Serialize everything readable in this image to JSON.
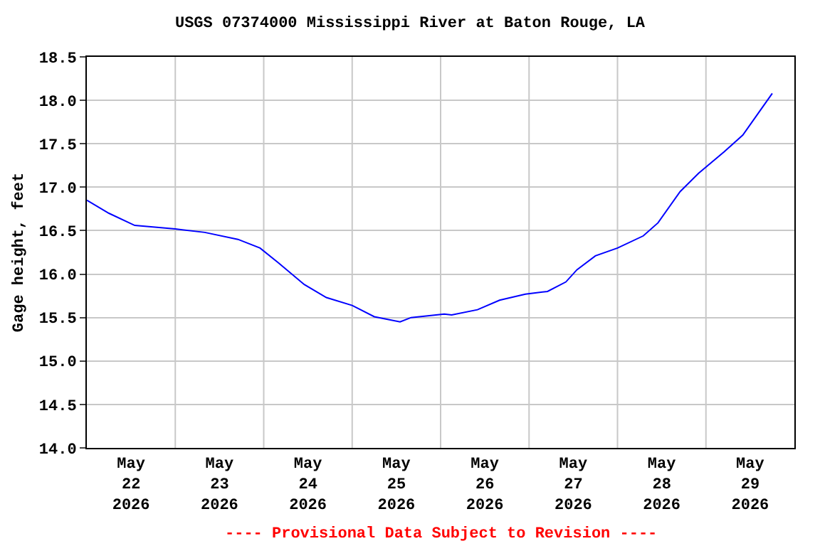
{
  "chart_data": {
    "type": "line",
    "title": "USGS 07374000 Mississippi River at Baton Rouge, LA",
    "ylabel": "Gage height, feet",
    "x": [
      "2026-05-22T00:00",
      "2026-05-22T06:00",
      "2026-05-22T13:00",
      "2026-05-23T00:00",
      "2026-05-23T08:00",
      "2026-05-23T17:00",
      "2026-05-23T23:00",
      "2026-05-24T04:00",
      "2026-05-24T11:00",
      "2026-05-24T17:00",
      "2026-05-25T00:00",
      "2026-05-25T06:00",
      "2026-05-25T13:00",
      "2026-05-25T16:00",
      "2026-05-26T01:00",
      "2026-05-26T03:00",
      "2026-05-26T10:00",
      "2026-05-26T16:00",
      "2026-05-26T23:00",
      "2026-05-27T05:00",
      "2026-05-27T10:00",
      "2026-05-27T13:00",
      "2026-05-27T18:00",
      "2026-05-28T00:00",
      "2026-05-28T07:00",
      "2026-05-28T11:00",
      "2026-05-28T17:00",
      "2026-05-28T22:00",
      "2026-05-29T05:00",
      "2026-05-29T10:00",
      "2026-05-29T15:00",
      "2026-05-29T18:00"
    ],
    "series": [
      {
        "color": "#0000ff",
        "values": [
          16.85,
          16.7,
          16.56,
          16.52,
          16.48,
          16.4,
          16.3,
          16.13,
          15.88,
          15.73,
          15.64,
          15.51,
          15.45,
          15.5,
          15.54,
          15.53,
          15.59,
          15.7,
          15.77,
          15.8,
          15.91,
          16.05,
          16.21,
          16.3,
          16.44,
          16.59,
          16.95,
          17.16,
          17.41,
          17.6,
          17.9,
          18.08
        ]
      }
    ],
    "xlim": [
      "2026-05-22T00:00",
      "2026-05-30T00:00"
    ],
    "xticks": [
      {
        "value": "2026-05-22T12:00",
        "label": "May\n22\n2026"
      },
      {
        "value": "2026-05-23T12:00",
        "label": "May\n23\n2026"
      },
      {
        "value": "2026-05-24T12:00",
        "label": "May\n24\n2026"
      },
      {
        "value": "2026-05-25T12:00",
        "label": "May\n25\n2026"
      },
      {
        "value": "2026-05-26T12:00",
        "label": "May\n26\n2026"
      },
      {
        "value": "2026-05-27T12:00",
        "label": "May\n27\n2026"
      },
      {
        "value": "2026-05-28T12:00",
        "label": "May\n28\n2026"
      },
      {
        "value": "2026-05-29T12:00",
        "label": "May\n29\n2026"
      },
      {
        "value": "2026-05-23T00:00",
        "label": null
      },
      {
        "value": "2026-05-24T00:00",
        "label": null
      },
      {
        "value": "2026-05-25T00:00",
        "label": null
      },
      {
        "value": "2026-05-26T00:00",
        "label": null
      },
      {
        "value": "2026-05-27T00:00",
        "label": null
      },
      {
        "value": "2026-05-28T00:00",
        "label": null
      },
      {
        "value": "2026-05-29T00:00",
        "label": null
      }
    ],
    "ylim": [
      14.0,
      18.5
    ],
    "yticks": [
      {
        "value": 14,
        "label": "14.0"
      },
      {
        "value": 14.5,
        "label": "14.5"
      },
      {
        "value": 15,
        "label": "15.0"
      },
      {
        "value": 15.5,
        "label": "15.5"
      },
      {
        "value": 16,
        "label": "16.0"
      },
      {
        "value": 16.5,
        "label": "16.5"
      },
      {
        "value": 17,
        "label": "17.0"
      },
      {
        "value": 17.5,
        "label": "17.5"
      },
      {
        "value": 18,
        "label": "18.0"
      },
      {
        "value": 18.5,
        "label": "18.5"
      }
    ],
    "grid": true,
    "marker": "none",
    "line_style": "solid",
    "annotations": [
      "---- Provisional Data Subject to Revision ----"
    ]
  }
}
